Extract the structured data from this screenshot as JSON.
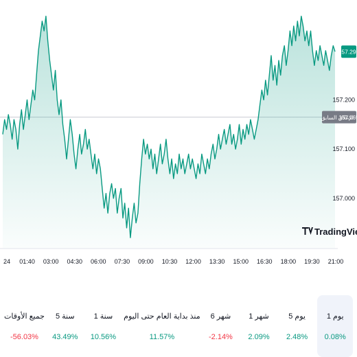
{
  "chart_data": {
    "type": "area",
    "x_ticks": [
      "24",
      "01:40",
      "03:00",
      "04:30",
      "06:00",
      "07:30",
      "09:00",
      "10:30",
      "12:00",
      "13:30",
      "15:00",
      "16:30",
      "18:00",
      "19:30",
      "21:00"
    ],
    "y_ticks": [
      157.0,
      157.1,
      157.2
    ],
    "y_tick_labels": [
      "157.000",
      "157.100",
      "157.200"
    ],
    "ylim": [
      156.898,
      157.389
    ],
    "previous_close": 157.165,
    "previous_close_label": "الإغلاق السابق",
    "previous_close_value": "157.165",
    "last_price_label": "157.298",
    "line_color": "#089981",
    "fill_color": "#089981",
    "values": [
      157.13,
      157.16,
      157.14,
      157.17,
      157.15,
      157.12,
      157.16,
      157.14,
      157.1,
      157.15,
      157.18,
      157.14,
      157.17,
      157.2,
      157.16,
      157.19,
      157.22,
      157.2,
      157.25,
      157.3,
      157.33,
      157.36,
      157.34,
      157.37,
      157.32,
      157.28,
      157.25,
      157.22,
      157.26,
      157.2,
      157.17,
      157.2,
      157.15,
      157.12,
      157.08,
      157.12,
      157.16,
      157.13,
      157.09,
      157.06,
      157.1,
      157.13,
      157.09,
      157.11,
      157.14,
      157.1,
      157.12,
      157.09,
      157.06,
      157.09,
      157.05,
      157.08,
      157.06,
      157.02,
      156.98,
      157.01,
      156.97,
      157.01,
      157.03,
      157.0,
      157.02,
      156.97,
      157.0,
      157.02,
      156.96,
      156.99,
      156.94,
      156.98,
      156.92,
      156.96,
      156.99,
      156.95,
      156.97,
      157.03,
      157.08,
      157.12,
      157.09,
      157.11,
      157.08,
      157.1,
      157.06,
      157.09,
      157.05,
      157.08,
      157.11,
      157.07,
      157.09,
      157.12,
      157.08,
      157.05,
      157.08,
      157.04,
      157.07,
      157.05,
      157.09,
      157.06,
      157.08,
      157.05,
      157.07,
      157.09,
      157.06,
      157.08,
      157.06,
      157.04,
      157.07,
      157.05,
      157.09,
      157.07,
      157.05,
      157.08,
      157.06,
      157.09,
      157.11,
      157.08,
      157.1,
      157.13,
      157.1,
      157.12,
      157.14,
      157.11,
      157.13,
      157.15,
      157.11,
      157.13,
      157.1,
      157.12,
      157.15,
      157.11,
      157.14,
      157.12,
      157.15,
      157.13,
      157.16,
      157.14,
      157.12,
      157.14,
      157.16,
      157.19,
      157.22,
      157.2,
      157.24,
      157.21,
      157.25,
      157.29,
      157.24,
      157.27,
      157.23,
      157.28,
      157.25,
      157.29,
      157.31,
      157.27,
      157.3,
      157.34,
      157.31,
      157.35,
      157.32,
      157.36,
      157.33,
      157.37,
      157.35,
      157.32,
      157.34,
      157.31,
      157.34,
      157.3,
      157.27,
      157.3,
      157.28,
      157.31,
      157.29,
      157.27,
      157.3,
      157.28,
      157.26,
      157.29,
      157.31,
      157.298
    ],
    "watermark": "TradingView"
  },
  "performance": [
    {
      "label": "1 يوم",
      "value": "0.08%",
      "sign": "pos",
      "active": true
    },
    {
      "label": "5 يوم",
      "value": "2.48%",
      "sign": "pos",
      "active": false
    },
    {
      "label": "1 شهر",
      "value": "2.09%",
      "sign": "pos",
      "active": false
    },
    {
      "label": "6 شهر",
      "value": "-2.14%",
      "sign": "neg",
      "active": false
    },
    {
      "label": "منذ بداية العام حتى اليوم",
      "value": "11.57%",
      "sign": "pos",
      "active": false
    },
    {
      "label": "1 سنة",
      "value": "10.56%",
      "sign": "pos",
      "active": false
    },
    {
      "label": "5 سنة",
      "value": "43.49%",
      "sign": "pos",
      "active": false
    },
    {
      "label": "جميع الأوقات",
      "value": "-56.03%",
      "sign": "neg",
      "active": false
    }
  ]
}
